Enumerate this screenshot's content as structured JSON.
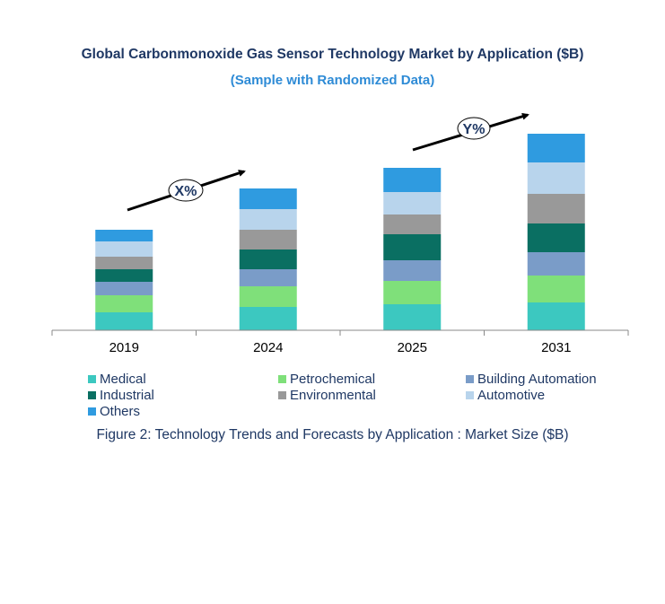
{
  "title": "Global Carbonmonoxide Gas Sensor Technology Market by Application ($B)",
  "subtitle": "(Sample with Randomized Data)",
  "caption": "Figure 2: Technology  Trends  and Forecasts by Application : Market Size ($B)",
  "annotations": {
    "left_growth": "X%",
    "right_growth": "Y%"
  },
  "chart_data": {
    "type": "bar",
    "stacked": true,
    "categories": [
      "2019",
      "2024",
      "2025",
      "2031"
    ],
    "series": [
      {
        "name": "Medical",
        "color": "#3cc8c0",
        "values": [
          20,
          26,
          29,
          31
        ]
      },
      {
        "name": "Petrochemical",
        "color": "#7fe07a",
        "values": [
          19,
          23,
          26,
          30
        ]
      },
      {
        "name": "Building Automation",
        "color": "#7a9cc8",
        "values": [
          15,
          19,
          23,
          26
        ]
      },
      {
        "name": "Industrial",
        "color": "#0a6f62",
        "values": [
          14,
          22,
          29,
          32
        ]
      },
      {
        "name": "Environmental",
        "color": "#999999",
        "values": [
          14,
          22,
          22,
          33
        ]
      },
      {
        "name": "Automotive",
        "color": "#b8d4ec",
        "values": [
          17,
          23,
          25,
          35
        ]
      },
      {
        "name": "Others",
        "color": "#2f9be0",
        "values": [
          13,
          23,
          27,
          32
        ]
      }
    ],
    "ylim": [
      0,
      230
    ],
    "grid": false,
    "legend_position": "bottom"
  }
}
